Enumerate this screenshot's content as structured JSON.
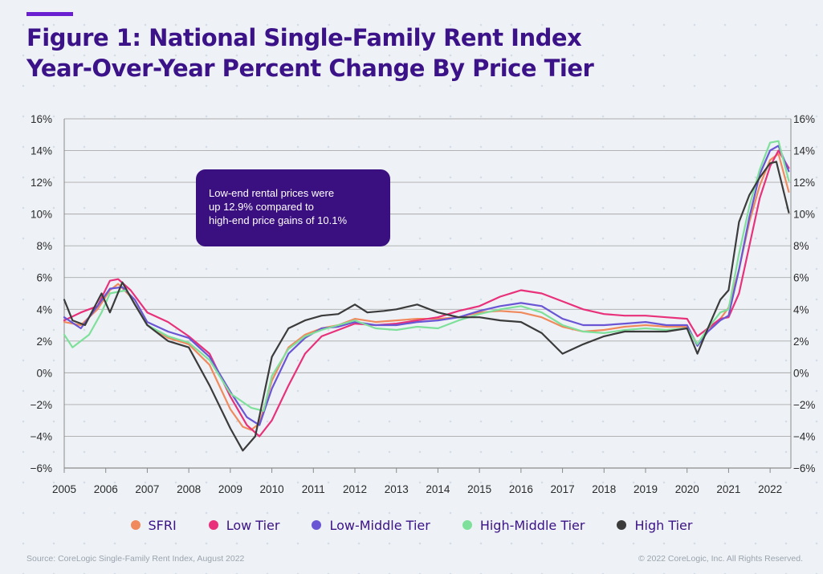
{
  "title_line_1": "Figure 1: National Single-Family Rent Index",
  "title_line_2": "Year-Over-Year Percent Change By Price Tier",
  "annotation": {
    "line_1": "Low-end rental prices were",
    "line_2": "up 12.9% compared to",
    "line_3": "high-end price gains of 10.1%"
  },
  "source": "Source: CoreLogic Single-Family Rent Index, August 2022",
  "copyright": "© 2022 CoreLogic, Inc. All Rights Reserved.",
  "chart_data": {
    "type": "line",
    "title": "Figure 1: National Single-Family Rent Index Year-Over-Year Percent Change By Price Tier",
    "xlim": [
      2005,
      2022.5
    ],
    "ylim": [
      -6,
      16
    ],
    "y_ticks": [
      -6,
      -4,
      -2,
      0,
      2,
      4,
      6,
      8,
      10,
      12,
      14,
      16
    ],
    "y_tick_labels": [
      "−6%",
      "−4%",
      "−2%",
      "0%",
      "2%",
      "4%",
      "6%",
      "8%",
      "10%",
      "12%",
      "14%",
      "16%"
    ],
    "x_tick_labels": [
      "2005",
      "2006",
      "2007",
      "2008",
      "2009",
      "2010",
      "2011",
      "2012",
      "2013",
      "2014",
      "2015",
      "2016",
      "2017",
      "2018",
      "2019",
      "2020",
      "2021",
      "2022"
    ],
    "grid": "horizontal",
    "legend_position": "bottom",
    "series": [
      {
        "name": "SFRI",
        "color": "#f08a5d",
        "points": [
          [
            2005,
            3.2
          ],
          [
            2005.4,
            3.0
          ],
          [
            2005.8,
            4.0
          ],
          [
            2006.1,
            5.2
          ],
          [
            2006.3,
            5.6
          ],
          [
            2006.6,
            4.8
          ],
          [
            2007,
            3.0
          ],
          [
            2007.5,
            2.2
          ],
          [
            2008,
            1.8
          ],
          [
            2008.5,
            0.5
          ],
          [
            2009,
            -2.3
          ],
          [
            2009.3,
            -3.4
          ],
          [
            2009.5,
            -3.6
          ],
          [
            2009.7,
            -3.2
          ],
          [
            2010,
            -0.5
          ],
          [
            2010.4,
            1.6
          ],
          [
            2010.8,
            2.4
          ],
          [
            2011.2,
            2.8
          ],
          [
            2011.6,
            3.0
          ],
          [
            2012,
            3.4
          ],
          [
            2012.5,
            3.2
          ],
          [
            2013,
            3.3
          ],
          [
            2013.5,
            3.4
          ],
          [
            2014,
            3.4
          ],
          [
            2014.5,
            3.5
          ],
          [
            2015,
            3.8
          ],
          [
            2015.5,
            3.9
          ],
          [
            2016,
            3.8
          ],
          [
            2016.5,
            3.5
          ],
          [
            2017,
            2.9
          ],
          [
            2017.5,
            2.6
          ],
          [
            2018,
            2.7
          ],
          [
            2018.5,
            2.9
          ],
          [
            2019,
            3.0
          ],
          [
            2019.5,
            2.9
          ],
          [
            2020,
            2.9
          ],
          [
            2020.25,
            1.8
          ],
          [
            2020.5,
            2.6
          ],
          [
            2020.8,
            3.4
          ],
          [
            2021,
            4.1
          ],
          [
            2021.25,
            6.5
          ],
          [
            2021.5,
            9.5
          ],
          [
            2021.75,
            11.8
          ],
          [
            2022,
            13.4
          ],
          [
            2022.2,
            13.8
          ],
          [
            2022.45,
            11.4
          ]
        ]
      },
      {
        "name": "Low Tier",
        "color": "#e8317a",
        "points": [
          [
            2005,
            3.3
          ],
          [
            2005.4,
            3.8
          ],
          [
            2005.8,
            4.2
          ],
          [
            2006.1,
            5.8
          ],
          [
            2006.3,
            5.9
          ],
          [
            2006.6,
            5.2
          ],
          [
            2007,
            3.8
          ],
          [
            2007.5,
            3.2
          ],
          [
            2008,
            2.3
          ],
          [
            2008.5,
            1.2
          ],
          [
            2009,
            -1.5
          ],
          [
            2009.4,
            -3.3
          ],
          [
            2009.7,
            -4.0
          ],
          [
            2010,
            -3.0
          ],
          [
            2010.4,
            -0.8
          ],
          [
            2010.8,
            1.2
          ],
          [
            2011.2,
            2.3
          ],
          [
            2011.6,
            2.7
          ],
          [
            2012,
            3.1
          ],
          [
            2012.5,
            3.0
          ],
          [
            2013,
            3.1
          ],
          [
            2013.5,
            3.3
          ],
          [
            2014,
            3.5
          ],
          [
            2014.5,
            3.9
          ],
          [
            2015,
            4.2
          ],
          [
            2015.5,
            4.8
          ],
          [
            2016,
            5.2
          ],
          [
            2016.5,
            5.0
          ],
          [
            2017,
            4.5
          ],
          [
            2017.5,
            4.0
          ],
          [
            2018,
            3.7
          ],
          [
            2018.5,
            3.6
          ],
          [
            2019,
            3.6
          ],
          [
            2019.5,
            3.5
          ],
          [
            2020,
            3.4
          ],
          [
            2020.25,
            2.3
          ],
          [
            2020.5,
            2.8
          ],
          [
            2020.8,
            3.4
          ],
          [
            2021,
            3.5
          ],
          [
            2021.25,
            5.0
          ],
          [
            2021.5,
            8.0
          ],
          [
            2021.75,
            11.0
          ],
          [
            2022,
            13.0
          ],
          [
            2022.2,
            14.0
          ],
          [
            2022.45,
            12.9
          ]
        ]
      },
      {
        "name": "Low-Middle Tier",
        "color": "#6a55d4",
        "points": [
          [
            2005,
            3.5
          ],
          [
            2005.4,
            2.8
          ],
          [
            2005.8,
            4.2
          ],
          [
            2006.1,
            5.3
          ],
          [
            2006.4,
            5.4
          ],
          [
            2006.7,
            4.6
          ],
          [
            2007,
            3.2
          ],
          [
            2007.5,
            2.6
          ],
          [
            2008,
            2.2
          ],
          [
            2008.5,
            1.0
          ],
          [
            2009,
            -1.2
          ],
          [
            2009.4,
            -2.8
          ],
          [
            2009.7,
            -3.3
          ],
          [
            2010,
            -1.0
          ],
          [
            2010.4,
            1.2
          ],
          [
            2010.8,
            2.2
          ],
          [
            2011.2,
            2.8
          ],
          [
            2011.6,
            2.9
          ],
          [
            2012,
            3.2
          ],
          [
            2012.5,
            3.0
          ],
          [
            2013,
            3.0
          ],
          [
            2013.5,
            3.2
          ],
          [
            2014,
            3.3
          ],
          [
            2014.5,
            3.5
          ],
          [
            2015,
            3.9
          ],
          [
            2015.5,
            4.2
          ],
          [
            2016,
            4.4
          ],
          [
            2016.5,
            4.2
          ],
          [
            2017,
            3.4
          ],
          [
            2017.5,
            3.0
          ],
          [
            2018,
            3.0
          ],
          [
            2018.5,
            3.1
          ],
          [
            2019,
            3.2
          ],
          [
            2019.5,
            3.0
          ],
          [
            2020,
            3.0
          ],
          [
            2020.25,
            1.7
          ],
          [
            2020.5,
            2.6
          ],
          [
            2020.8,
            3.3
          ],
          [
            2021,
            3.6
          ],
          [
            2021.25,
            6.5
          ],
          [
            2021.5,
            9.8
          ],
          [
            2021.75,
            12.5
          ],
          [
            2022,
            14.0
          ],
          [
            2022.2,
            14.3
          ],
          [
            2022.45,
            12.7
          ]
        ]
      },
      {
        "name": "High-Middle Tier",
        "color": "#7ee09a",
        "points": [
          [
            2005,
            2.4
          ],
          [
            2005.2,
            1.6
          ],
          [
            2005.6,
            2.4
          ],
          [
            2005.9,
            3.8
          ],
          [
            2006.1,
            5.0
          ],
          [
            2006.5,
            5.2
          ],
          [
            2007,
            3.0
          ],
          [
            2007.5,
            2.3
          ],
          [
            2008,
            1.9
          ],
          [
            2008.5,
            0.8
          ],
          [
            2009,
            -1.3
          ],
          [
            2009.5,
            -2.2
          ],
          [
            2009.8,
            -2.4
          ],
          [
            2010,
            -0.2
          ],
          [
            2010.4,
            1.5
          ],
          [
            2010.8,
            2.3
          ],
          [
            2011.2,
            2.7
          ],
          [
            2011.6,
            3.0
          ],
          [
            2012,
            3.3
          ],
          [
            2012.5,
            2.8
          ],
          [
            2013,
            2.7
          ],
          [
            2013.5,
            2.9
          ],
          [
            2014,
            2.8
          ],
          [
            2014.5,
            3.3
          ],
          [
            2015,
            3.7
          ],
          [
            2015.5,
            4.0
          ],
          [
            2016,
            4.2
          ],
          [
            2016.5,
            3.8
          ],
          [
            2017,
            3.0
          ],
          [
            2017.5,
            2.6
          ],
          [
            2018,
            2.5
          ],
          [
            2018.5,
            2.7
          ],
          [
            2019,
            2.8
          ],
          [
            2019.5,
            2.7
          ],
          [
            2020,
            2.8
          ],
          [
            2020.25,
            1.8
          ],
          [
            2020.5,
            2.8
          ],
          [
            2020.8,
            3.8
          ],
          [
            2021,
            4.0
          ],
          [
            2021.25,
            7.5
          ],
          [
            2021.5,
            10.5
          ],
          [
            2021.75,
            12.8
          ],
          [
            2022,
            14.5
          ],
          [
            2022.2,
            14.6
          ],
          [
            2022.45,
            12.1
          ]
        ]
      },
      {
        "name": "High Tier",
        "color": "#3b3b3b",
        "points": [
          [
            2005,
            4.6
          ],
          [
            2005.2,
            3.3
          ],
          [
            2005.5,
            3.0
          ],
          [
            2005.9,
            5.0
          ],
          [
            2006.1,
            3.8
          ],
          [
            2006.4,
            5.7
          ],
          [
            2006.7,
            4.3
          ],
          [
            2007,
            3.0
          ],
          [
            2007.5,
            2.0
          ],
          [
            2008,
            1.6
          ],
          [
            2008.5,
            -0.8
          ],
          [
            2009,
            -3.5
          ],
          [
            2009.3,
            -4.9
          ],
          [
            2009.6,
            -4.0
          ],
          [
            2010,
            1.0
          ],
          [
            2010.4,
            2.8
          ],
          [
            2010.8,
            3.3
          ],
          [
            2011.2,
            3.6
          ],
          [
            2011.6,
            3.7
          ],
          [
            2012,
            4.3
          ],
          [
            2012.3,
            3.8
          ],
          [
            2012.7,
            3.9
          ],
          [
            2013,
            4.0
          ],
          [
            2013.5,
            4.3
          ],
          [
            2014,
            3.8
          ],
          [
            2014.5,
            3.5
          ],
          [
            2015,
            3.5
          ],
          [
            2015.5,
            3.3
          ],
          [
            2016,
            3.2
          ],
          [
            2016.5,
            2.5
          ],
          [
            2017,
            1.2
          ],
          [
            2017.5,
            1.8
          ],
          [
            2018,
            2.3
          ],
          [
            2018.5,
            2.6
          ],
          [
            2019,
            2.6
          ],
          [
            2019.5,
            2.6
          ],
          [
            2020,
            2.8
          ],
          [
            2020.25,
            1.2
          ],
          [
            2020.5,
            2.8
          ],
          [
            2020.8,
            4.6
          ],
          [
            2021,
            5.2
          ],
          [
            2021.25,
            9.5
          ],
          [
            2021.5,
            11.2
          ],
          [
            2021.75,
            12.3
          ],
          [
            2022,
            13.2
          ],
          [
            2022.15,
            13.3
          ],
          [
            2022.45,
            10.1
          ]
        ]
      }
    ]
  }
}
